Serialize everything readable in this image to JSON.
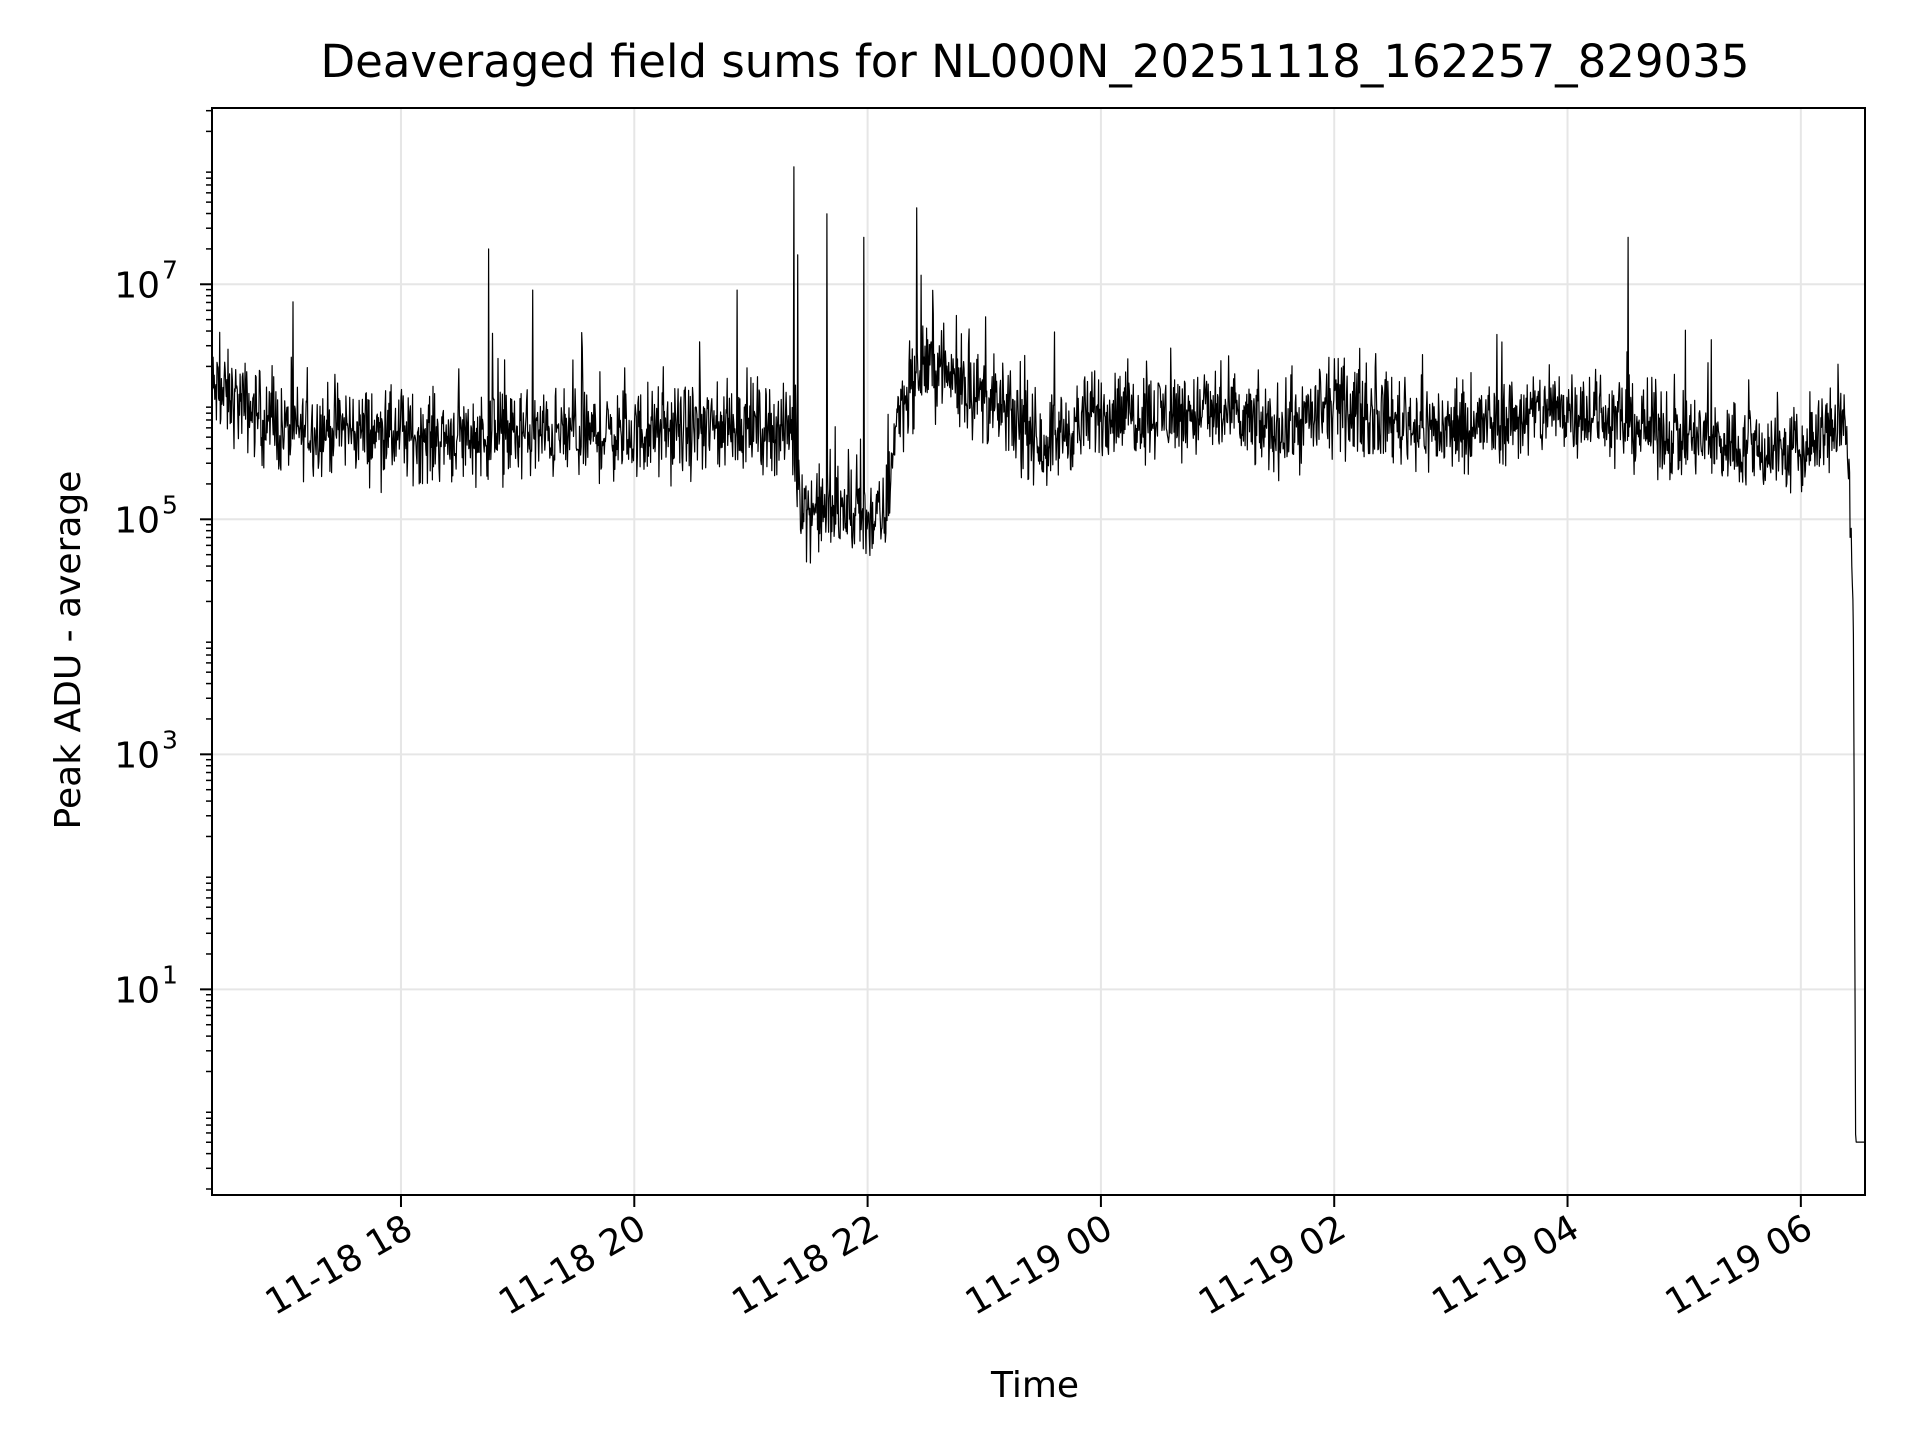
{
  "chart_data": {
    "type": "line",
    "title": "Deaveraged field sums for NL000N_20251118_162257_829035",
    "xlabel": "Time",
    "ylabel": "Peak ADU - average",
    "yscale": "log",
    "grid": true,
    "x_range_hours": [
      16.38,
      30.55
    ],
    "ylim_log10": [
      -0.75,
      8.5
    ],
    "x_ticks": [
      {
        "hour": 18,
        "label": "11-18 18"
      },
      {
        "hour": 20,
        "label": "11-18 20"
      },
      {
        "hour": 22,
        "label": "11-18 22"
      },
      {
        "hour": 24,
        "label": "11-19 00"
      },
      {
        "hour": 26,
        "label": "11-19 02"
      },
      {
        "hour": 28,
        "label": "11-19 04"
      },
      {
        "hour": 30,
        "label": "11-19 06"
      }
    ],
    "y_ticks": [
      {
        "exp": 7,
        "base": "10",
        "sup": "7"
      },
      {
        "exp": 5,
        "base": "10",
        "sup": "5"
      },
      {
        "exp": 3,
        "base": "10",
        "sup": "3"
      },
      {
        "exp": 1,
        "base": "10",
        "sup": "1"
      }
    ],
    "series": [
      {
        "name": "deaveraged field sum",
        "color": "#000000",
        "baseline_log10": [
          [
            16.38,
            6.1
          ],
          [
            16.6,
            6.0
          ],
          [
            17.0,
            5.75
          ],
          [
            17.5,
            5.78
          ],
          [
            18.0,
            5.7
          ],
          [
            19.0,
            5.72
          ],
          [
            20.0,
            5.72
          ],
          [
            21.0,
            5.8
          ],
          [
            21.35,
            5.75
          ],
          [
            21.45,
            5.1
          ],
          [
            22.15,
            5.0
          ],
          [
            22.25,
            5.9
          ],
          [
            22.5,
            6.35
          ],
          [
            22.9,
            6.1
          ],
          [
            23.5,
            5.65
          ],
          [
            24.0,
            5.9
          ],
          [
            25.0,
            5.9
          ],
          [
            25.5,
            5.75
          ],
          [
            26.0,
            5.95
          ],
          [
            27.0,
            5.75
          ],
          [
            28.0,
            5.95
          ],
          [
            29.0,
            5.7
          ],
          [
            30.0,
            5.55
          ],
          [
            30.25,
            5.75
          ],
          [
            30.38,
            5.9
          ],
          [
            30.42,
            5.1
          ],
          [
            30.45,
            4.2
          ],
          [
            30.47,
            -0.3
          ],
          [
            30.55,
            -0.3
          ]
        ],
        "spikes": [
          {
            "hour": 18.75,
            "log10": 7.3
          },
          {
            "hour": 19.13,
            "log10": 6.95
          },
          {
            "hour": 20.88,
            "log10": 6.95
          },
          {
            "hour": 21.37,
            "log10": 8.0
          },
          {
            "hour": 21.4,
            "log10": 7.25
          },
          {
            "hour": 21.65,
            "log10": 7.6
          },
          {
            "hour": 21.97,
            "log10": 7.4
          },
          {
            "hour": 22.42,
            "log10": 7.65
          },
          {
            "hour": 28.52,
            "log10": 7.4
          }
        ],
        "points": 3000,
        "noise_amplitude_log10": 0.55
      }
    ]
  }
}
